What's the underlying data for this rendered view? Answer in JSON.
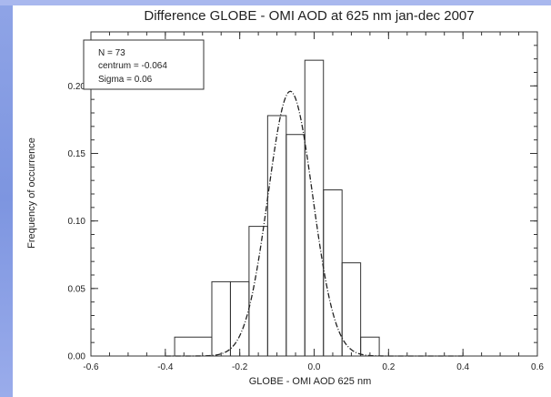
{
  "chart_data": {
    "type": "bar",
    "title": "Difference GLOBE - OMI AOD at 625 nm jan-dec 2007",
    "xlabel": "GLOBE - OMI AOD 625 nm",
    "ylabel": "Frequency of occurrence",
    "xlim": [
      -0.6,
      0.6
    ],
    "ylim": [
      0.0,
      0.24
    ],
    "xticks": [
      "-0.6",
      "-0.4",
      "-0.2",
      "0.0",
      "0.2",
      "0.4",
      "0.6"
    ],
    "xtick_values": [
      -0.6,
      -0.4,
      -0.2,
      0.0,
      0.2,
      0.4,
      0.6
    ],
    "yticks": [
      "0.00",
      "0.05",
      "0.10",
      "0.15",
      "0.20"
    ],
    "ytick_values": [
      0.0,
      0.05,
      0.1,
      0.15,
      0.2
    ],
    "bins": [
      {
        "x0": -0.375,
        "x1": -0.275,
        "value": 0.014
      },
      {
        "x0": -0.275,
        "x1": -0.225,
        "value": 0.055
      },
      {
        "x0": -0.225,
        "x1": -0.175,
        "value": 0.055
      },
      {
        "x0": -0.175,
        "x1": -0.125,
        "value": 0.096
      },
      {
        "x0": -0.125,
        "x1": -0.075,
        "value": 0.178
      },
      {
        "x0": -0.075,
        "x1": -0.025,
        "value": 0.164
      },
      {
        "x0": -0.025,
        "x1": 0.025,
        "value": 0.219
      },
      {
        "x0": 0.025,
        "x1": 0.075,
        "value": 0.123
      },
      {
        "x0": 0.075,
        "x1": 0.125,
        "value": 0.069
      },
      {
        "x0": 0.125,
        "x1": 0.175,
        "value": 0.014
      }
    ],
    "gaussian": {
      "mean": -0.064,
      "sigma": 0.06,
      "peak": 0.196
    },
    "stats_box": {
      "n_label": "N = 73",
      "centrum_label": "centrum = -0.064",
      "sigma_label": "Sigma = 0.06"
    },
    "colors": {
      "axis": "#333333",
      "bars": "#333333",
      "curve": "#222222",
      "left_strip": "#8fa4e6"
    }
  }
}
